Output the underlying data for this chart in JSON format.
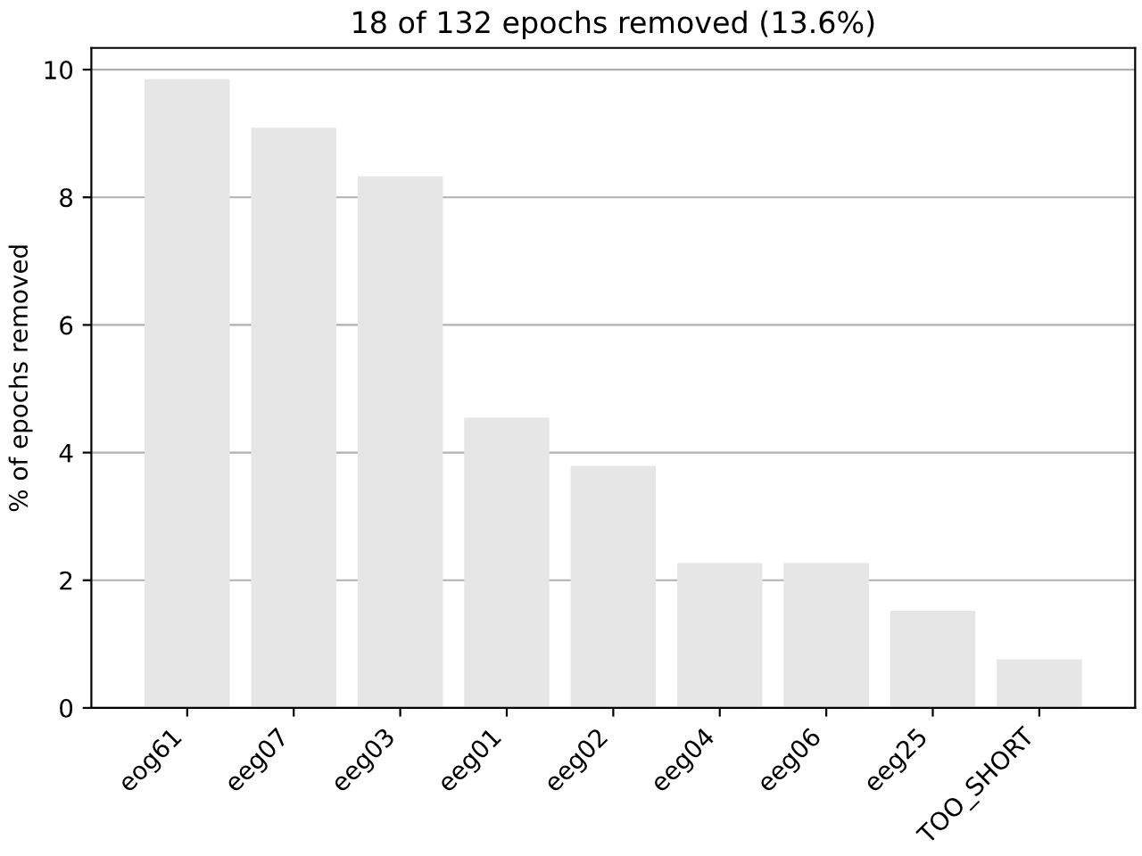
{
  "chart_data": {
    "type": "bar",
    "title": "18 of 132 epochs removed (13.6%)",
    "ylabel": "% of epochs removed",
    "categories": [
      "eog61",
      "eeg07",
      "eeg03",
      "eeg01",
      "eeg02",
      "eeg04",
      "eeg06",
      "eeg25",
      "TOO_SHORT"
    ],
    "values": [
      9.85,
      9.09,
      8.33,
      4.55,
      3.79,
      2.27,
      2.27,
      1.52,
      0.76
    ],
    "color": "#e6e6e6",
    "ylim": [
      0,
      10.34
    ],
    "yticks": [
      0,
      2,
      4,
      6,
      8,
      10
    ],
    "grid": "y"
  }
}
